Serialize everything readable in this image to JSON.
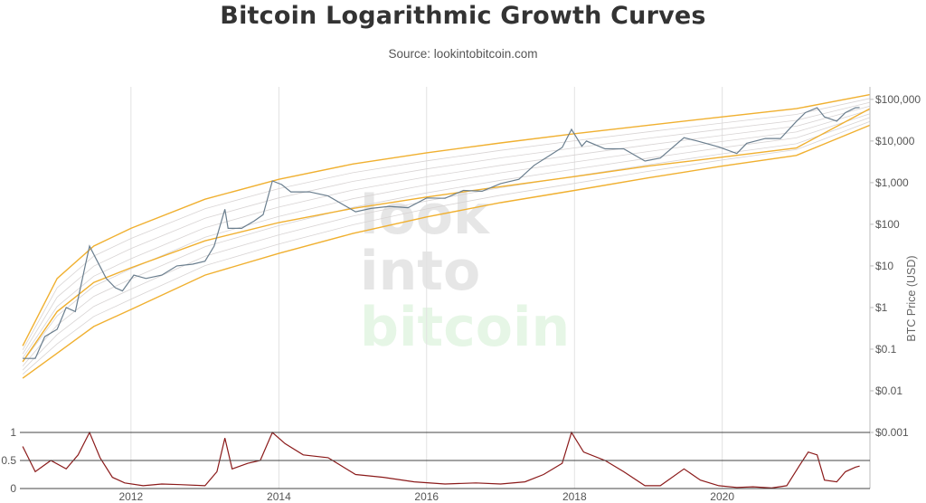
{
  "title": "Bitcoin Logarithmic Growth Curves",
  "subtitle": "Source: lookintobitcoin.com",
  "watermark": [
    "look",
    "into",
    "bitcoin"
  ],
  "colors": {
    "price": "#6a7e8e",
    "band": "#f0b030",
    "inner": "#d8d4d4",
    "oscillator": "#8b1a1a",
    "watermark_gray": "#e6e6e6",
    "watermark_green": "#e6f6e6"
  },
  "chart_data": [
    {
      "type": "line",
      "name": "price",
      "x_type": "date",
      "xlim": [
        "2010-07-01",
        "2021-12-31"
      ],
      "y_scale": "log",
      "ylim": [
        0.001,
        200000
      ],
      "ylabel": "BTC Price (USD)",
      "y_ticks": [
        {
          "value": 100000,
          "label": "$100,000"
        },
        {
          "value": 10000,
          "label": "$10,000"
        },
        {
          "value": 1000,
          "label": "$1,000"
        },
        {
          "value": 100,
          "label": "$100"
        },
        {
          "value": 10,
          "label": "$10"
        },
        {
          "value": 1,
          "label": "$1"
        },
        {
          "value": 0.1,
          "label": "$0.1"
        },
        {
          "value": 0.01,
          "label": "$0.01"
        },
        {
          "value": 0.001,
          "label": "$0.001"
        }
      ],
      "x_ticks": [
        "2012",
        "2014",
        "2016",
        "2018",
        "2020"
      ],
      "series": [
        {
          "x": [
            "2010-07-15",
            "2010-09-15",
            "2010-11-01",
            "2011-01-01",
            "2011-02-15",
            "2011-04-01",
            "2011-05-15",
            "2011-06-10",
            "2011-07-15",
            "2011-09-01",
            "2011-10-15",
            "2011-11-20",
            "2012-01-15",
            "2012-03-15",
            "2012-06-01",
            "2012-08-15",
            "2012-11-01",
            "2013-01-01",
            "2013-02-15",
            "2013-04-09",
            "2013-04-25",
            "2013-07-01",
            "2013-09-01",
            "2013-10-15",
            "2013-11-30",
            "2014-01-15",
            "2014-03-01",
            "2014-06-01",
            "2014-09-01",
            "2015-01-15",
            "2015-04-01",
            "2015-07-01",
            "2015-10-01",
            "2016-01-01",
            "2016-04-01",
            "2016-07-01",
            "2016-10-01",
            "2017-01-01",
            "2017-04-01",
            "2017-06-15",
            "2017-09-01",
            "2017-11-01",
            "2017-12-17",
            "2018-02-06",
            "2018-03-01",
            "2018-06-01",
            "2018-09-01",
            "2018-12-15",
            "2019-03-01",
            "2019-06-26",
            "2019-09-01",
            "2019-12-15",
            "2020-03-13",
            "2020-05-01",
            "2020-08-01",
            "2020-10-15",
            "2020-12-31",
            "2021-02-15",
            "2021-04-14",
            "2021-05-20",
            "2021-07-20",
            "2021-09-01",
            "2021-10-20",
            "2021-11-10"
          ],
          "y": [
            0.06,
            0.06,
            0.2,
            0.3,
            1.0,
            0.8,
            8,
            30,
            14,
            5,
            3,
            2.5,
            6,
            5,
            6,
            10,
            11,
            13,
            30,
            230,
            80,
            80,
            120,
            170,
            1100,
            900,
            600,
            600,
            480,
            200,
            240,
            270,
            250,
            430,
            420,
            650,
            620,
            950,
            1200,
            2600,
            4500,
            7000,
            19000,
            7500,
            10000,
            6500,
            6500,
            3300,
            3900,
            12000,
            10000,
            7200,
            5000,
            8800,
            11500,
            11500,
            29000,
            48000,
            63000,
            38000,
            30000,
            48000,
            63000,
            64000
          ]
        },
        {
          "name": "band-upper",
          "x": [
            "2010-07-15",
            "2011-01-01",
            "2011-07-01",
            "2012-01-01",
            "2013-01-01",
            "2014-01-01",
            "2015-01-01",
            "2016-01-01",
            "2017-01-01",
            "2018-01-01",
            "2019-01-01",
            "2020-01-01",
            "2021-01-01",
            "2021-12-31"
          ],
          "y": [
            0.12,
            5,
            30,
            80,
            400,
            1200,
            2800,
            5200,
            9000,
            15000,
            24000,
            38000,
            60000,
            130000
          ]
        },
        {
          "name": "band-middle",
          "x": [
            "2010-07-15",
            "2011-01-01",
            "2011-07-01",
            "2012-01-01",
            "2013-01-01",
            "2014-01-01",
            "2015-01-01",
            "2016-01-01",
            "2017-01-01",
            "2018-01-01",
            "2019-01-01",
            "2020-01-01",
            "2021-01-01",
            "2021-12-31"
          ],
          "y": [
            0.05,
            0.8,
            4,
            9,
            40,
            110,
            240,
            450,
            800,
            1400,
            2500,
            4100,
            6800,
            60000
          ]
        },
        {
          "name": "band-lower",
          "x": [
            "2010-07-15",
            "2011-01-01",
            "2011-07-01",
            "2012-01-01",
            "2013-01-01",
            "2014-01-01",
            "2015-01-01",
            "2016-01-01",
            "2017-01-01",
            "2018-01-01",
            "2019-01-01",
            "2020-01-01",
            "2021-01-01",
            "2021-12-31"
          ],
          "y": [
            0.02,
            0.08,
            0.35,
            0.9,
            6,
            20,
            60,
            150,
            330,
            650,
            1300,
            2500,
            4500,
            24000
          ]
        }
      ]
    },
    {
      "type": "line",
      "name": "oscillator",
      "x_type": "date",
      "xlim": [
        "2010-07-01",
        "2021-12-31"
      ],
      "ylim": [
        0,
        1
      ],
      "y_ticks": [
        {
          "value": 1,
          "label": "1"
        },
        {
          "value": 0.5,
          "label": "0.5"
        },
        {
          "value": 0,
          "label": "0"
        }
      ],
      "series": [
        {
          "x": [
            "2010-07-15",
            "2010-09-15",
            "2010-12-01",
            "2011-02-15",
            "2011-04-15",
            "2011-06-10",
            "2011-08-01",
            "2011-10-01",
            "2011-12-01",
            "2012-03-01",
            "2012-06-01",
            "2012-09-01",
            "2013-01-01",
            "2013-03-01",
            "2013-04-09",
            "2013-05-15",
            "2013-08-01",
            "2013-10-01",
            "2013-11-30",
            "2014-02-01",
            "2014-05-01",
            "2014-09-01",
            "2015-01-15",
            "2015-06-01",
            "2015-11-01",
            "2016-04-01",
            "2016-09-01",
            "2017-01-01",
            "2017-05-01",
            "2017-08-01",
            "2017-11-01",
            "2017-12-17",
            "2018-02-15",
            "2018-06-01",
            "2018-09-01",
            "2018-12-15",
            "2019-03-01",
            "2019-06-26",
            "2019-09-15",
            "2019-12-15",
            "2020-03-13",
            "2020-06-01",
            "2020-09-01",
            "2020-11-15",
            "2021-01-15",
            "2021-03-01",
            "2021-04-14",
            "2021-05-20",
            "2021-07-20",
            "2021-09-01",
            "2021-10-20",
            "2021-11-10"
          ],
          "y": [
            0.75,
            0.3,
            0.5,
            0.35,
            0.6,
            1.0,
            0.55,
            0.2,
            0.1,
            0.05,
            0.08,
            0.07,
            0.05,
            0.3,
            0.9,
            0.35,
            0.45,
            0.5,
            1.0,
            0.8,
            0.6,
            0.55,
            0.25,
            0.2,
            0.12,
            0.08,
            0.1,
            0.08,
            0.12,
            0.25,
            0.45,
            1.0,
            0.65,
            0.5,
            0.3,
            0.05,
            0.05,
            0.35,
            0.15,
            0.05,
            0.02,
            0.03,
            0.01,
            0.05,
            0.4,
            0.65,
            0.6,
            0.15,
            0.12,
            0.3,
            0.38,
            0.4
          ]
        }
      ]
    }
  ]
}
